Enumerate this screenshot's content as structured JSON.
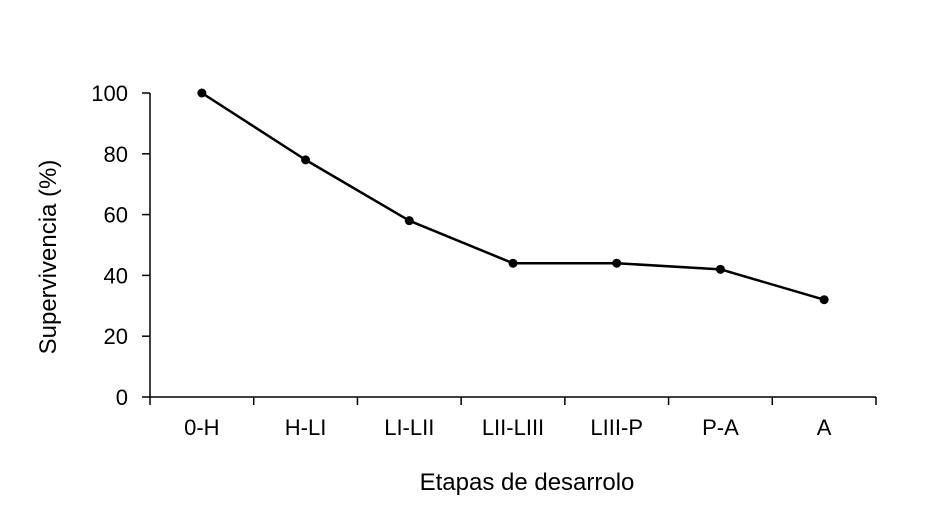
{
  "chart_data": {
    "type": "line",
    "categories": [
      "0-H",
      "H-LI",
      "LI-LII",
      "LII-LIII",
      "LIII-P",
      "P-A",
      "A"
    ],
    "series": [
      {
        "values": [
          100,
          78,
          58,
          44,
          44,
          42,
          32
        ],
        "color": "#000000"
      }
    ],
    "xlabel": "Etapas de desarrolo",
    "ylabel": "Supervivencia (%)",
    "ylim": [
      0,
      100
    ],
    "yticks": [
      0,
      20,
      40,
      60,
      80,
      100
    ],
    "grid": false,
    "markers": "filled-circle"
  }
}
